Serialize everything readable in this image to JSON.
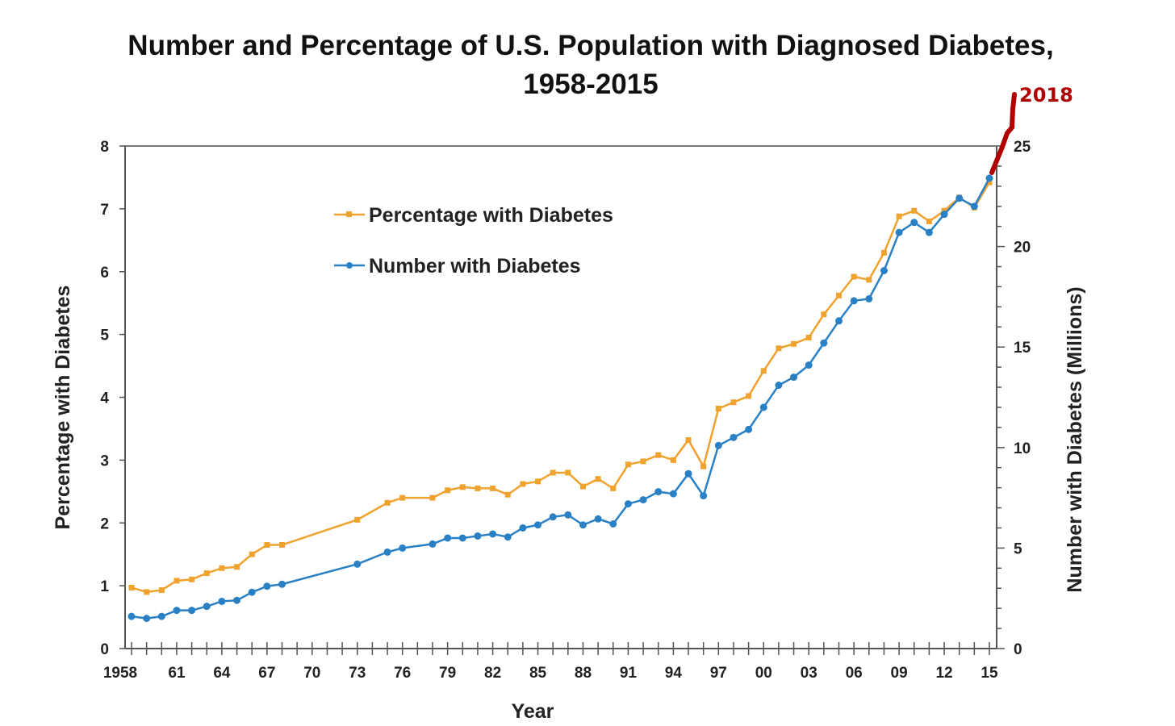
{
  "chart_data": {
    "type": "line",
    "title": "Number and Percentage of U.S. Population with Diagnosed Diabetes,",
    "subtitle": "1958-2015",
    "xlabel": "Year",
    "ylabel_left": "Percentage with Diabetes",
    "ylabel_right": "Number with Diabetes (Millions)",
    "ylim_left": [
      0,
      8
    ],
    "ylim_right": [
      0,
      25
    ],
    "left_ticks": [
      "0",
      "1",
      "2",
      "3",
      "4",
      "5",
      "6",
      "7",
      "8"
    ],
    "right_ticks": [
      "0",
      "5",
      "10",
      "15",
      "20",
      "25"
    ],
    "x_tick_labels": [
      {
        "year": 1958,
        "label": "1958"
      },
      {
        "year": 1961,
        "label": "61"
      },
      {
        "year": 1964,
        "label": "64"
      },
      {
        "year": 1967,
        "label": "67"
      },
      {
        "year": 1970,
        "label": "70"
      },
      {
        "year": 1973,
        "label": "73"
      },
      {
        "year": 1976,
        "label": "76"
      },
      {
        "year": 1979,
        "label": "79"
      },
      {
        "year": 1982,
        "label": "82"
      },
      {
        "year": 1985,
        "label": "85"
      },
      {
        "year": 1988,
        "label": "88"
      },
      {
        "year": 1991,
        "label": "91"
      },
      {
        "year": 1994,
        "label": "94"
      },
      {
        "year": 1997,
        "label": "97"
      },
      {
        "year": 2000,
        "label": "00"
      },
      {
        "year": 2003,
        "label": "03"
      },
      {
        "year": 2006,
        "label": "06"
      },
      {
        "year": 2009,
        "label": "09"
      },
      {
        "year": 2012,
        "label": "12"
      },
      {
        "year": 2015,
        "label": "15"
      }
    ],
    "xlim": [
      1958,
      2015
    ],
    "legend_position": "top-left",
    "grid": false,
    "x": [
      1958,
      1959,
      1960,
      1961,
      1962,
      1963,
      1964,
      1965,
      1966,
      1967,
      1968,
      1973,
      1975,
      1976,
      1978,
      1979,
      1980,
      1981,
      1982,
      1983,
      1984,
      1985,
      1986,
      1987,
      1988,
      1989,
      1990,
      1991,
      1992,
      1993,
      1994,
      1995,
      1996,
      1997,
      1998,
      1999,
      2000,
      2001,
      2002,
      2003,
      2004,
      2005,
      2006,
      2007,
      2008,
      2009,
      2010,
      2011,
      2012,
      2013,
      2014,
      2015
    ],
    "series": [
      {
        "name": "Percentage with Diabetes",
        "axis": "left",
        "color": "#f0a22e",
        "values": [
          0.97,
          0.9,
          0.93,
          1.08,
          1.1,
          1.2,
          1.28,
          1.3,
          1.5,
          1.65,
          1.65,
          2.05,
          2.32,
          2.4,
          2.4,
          2.52,
          2.57,
          2.55,
          2.55,
          2.45,
          2.62,
          2.66,
          2.8,
          2.8,
          2.58,
          2.7,
          2.55,
          2.93,
          2.98,
          3.08,
          3.0,
          3.32,
          2.9,
          3.82,
          3.92,
          4.02,
          4.42,
          4.78,
          4.85,
          4.95,
          5.32,
          5.62,
          5.92,
          5.87,
          6.3,
          6.88,
          6.97,
          6.8,
          6.97,
          7.18,
          7.02,
          7.42
        ]
      },
      {
        "name": "Number with Diabetes",
        "axis": "right",
        "color": "#2a80c4",
        "values": [
          1.6,
          1.5,
          1.6,
          1.9,
          1.9,
          2.1,
          2.35,
          2.4,
          2.8,
          3.1,
          3.2,
          4.2,
          4.8,
          5.0,
          5.2,
          5.5,
          5.5,
          5.6,
          5.7,
          5.55,
          6.0,
          6.15,
          6.55,
          6.65,
          6.15,
          6.45,
          6.2,
          7.2,
          7.4,
          7.8,
          7.7,
          8.7,
          7.6,
          10.1,
          10.5,
          10.9,
          12.0,
          13.1,
          13.5,
          14.1,
          15.2,
          16.3,
          17.3,
          17.4,
          18.8,
          20.7,
          21.2,
          20.7,
          21.6,
          22.4,
          22.0,
          23.4
        ]
      }
    ],
    "annotation": {
      "label": "2018",
      "color": "#b00000"
    }
  }
}
